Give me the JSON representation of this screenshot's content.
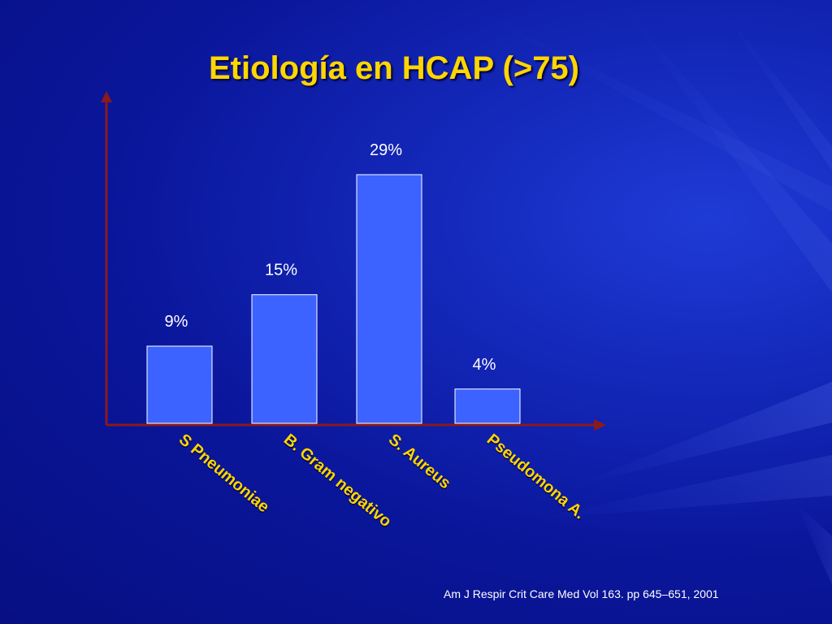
{
  "slide": {
    "title": "Etiología en HCAP (>75)",
    "citation": "Am J Respir Crit Care Med Vol 163. pp 645–651, 2001"
  },
  "colors": {
    "background": "#0a169a",
    "title": "#ffd600",
    "bar_fill": "#3c63ff",
    "bar_stroke": "#ffffff",
    "axis": "#8b1a1a",
    "category_label": "#ffd600",
    "value_label": "#ffffff"
  },
  "chart_data": {
    "type": "bar",
    "title": "Etiología en HCAP (>75)",
    "categories": [
      "S Pneumoniae",
      "B. Gram negativo",
      "S. Aureus",
      "Pseudomona A."
    ],
    "values": [
      9,
      15,
      29,
      4
    ],
    "value_labels": [
      "9%",
      "15%",
      "29%",
      "4%"
    ],
    "xlabel": "",
    "ylabel": "",
    "ylim": [
      0,
      38
    ],
    "grid": false,
    "legend": "none"
  }
}
